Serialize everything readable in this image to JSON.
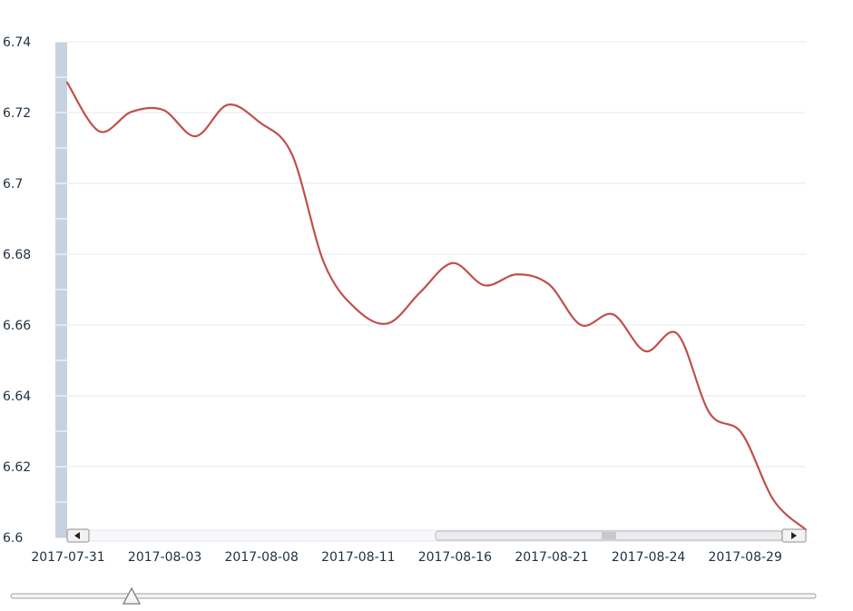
{
  "chart_data": {
    "type": "line",
    "title": "",
    "xlabel": "",
    "ylabel": "",
    "ylim": [
      6.6,
      6.74
    ],
    "y_ticks": [
      6.6,
      6.62,
      6.64,
      6.66,
      6.68,
      6.7,
      6.72,
      6.74
    ],
    "y_tick_labels": [
      "6.6",
      "6.62",
      "6.64",
      "6.66",
      "6.68",
      "6.7",
      "6.72",
      "6.74"
    ],
    "x_tick_labels": [
      "2017-07-31",
      "2017-08-03",
      "2017-08-08",
      "2017-08-11",
      "2017-08-16",
      "2017-08-21",
      "2017-08-24",
      "2017-08-29"
    ],
    "grid": "horizontal",
    "legend": "none",
    "x": [
      "2017-07-31",
      "2017-08-01",
      "2017-08-02",
      "2017-08-03",
      "2017-08-04",
      "2017-08-07",
      "2017-08-08",
      "2017-08-09",
      "2017-08-10",
      "2017-08-11",
      "2017-08-14",
      "2017-08-15",
      "2017-08-16",
      "2017-08-17",
      "2017-08-18",
      "2017-08-21",
      "2017-08-22",
      "2017-08-23",
      "2017-08-24",
      "2017-08-25",
      "2017-08-28",
      "2017-08-29",
      "2017-08-30",
      "2017-08-31"
    ],
    "series": [
      {
        "color": "#c0504d",
        "values": [
          6.7285,
          6.7147,
          6.7202,
          6.7207,
          6.7133,
          6.7222,
          6.7172,
          6.7082,
          6.6775,
          6.6645,
          6.6605,
          6.6693,
          6.6775,
          6.6712,
          6.6743,
          6.6715,
          6.66,
          6.663,
          6.6526,
          6.6575,
          6.6352,
          6.6295,
          6.6105,
          6.6022
        ]
      }
    ],
    "scrollbar": {
      "window_start_fraction": 0.5,
      "window_end_fraction": 1.0,
      "left_arrow": "arrow-left-icon",
      "right_arrow": "arrow-right-icon"
    },
    "zoom_slider": {
      "value_fraction": 0.15,
      "thumb_icon": "triangle-up-icon"
    },
    "colors": {
      "line": "#c0504d",
      "axis_bar": "#c6d2e0",
      "grid": "#e6e9ee",
      "text": "#1e3040"
    }
  }
}
